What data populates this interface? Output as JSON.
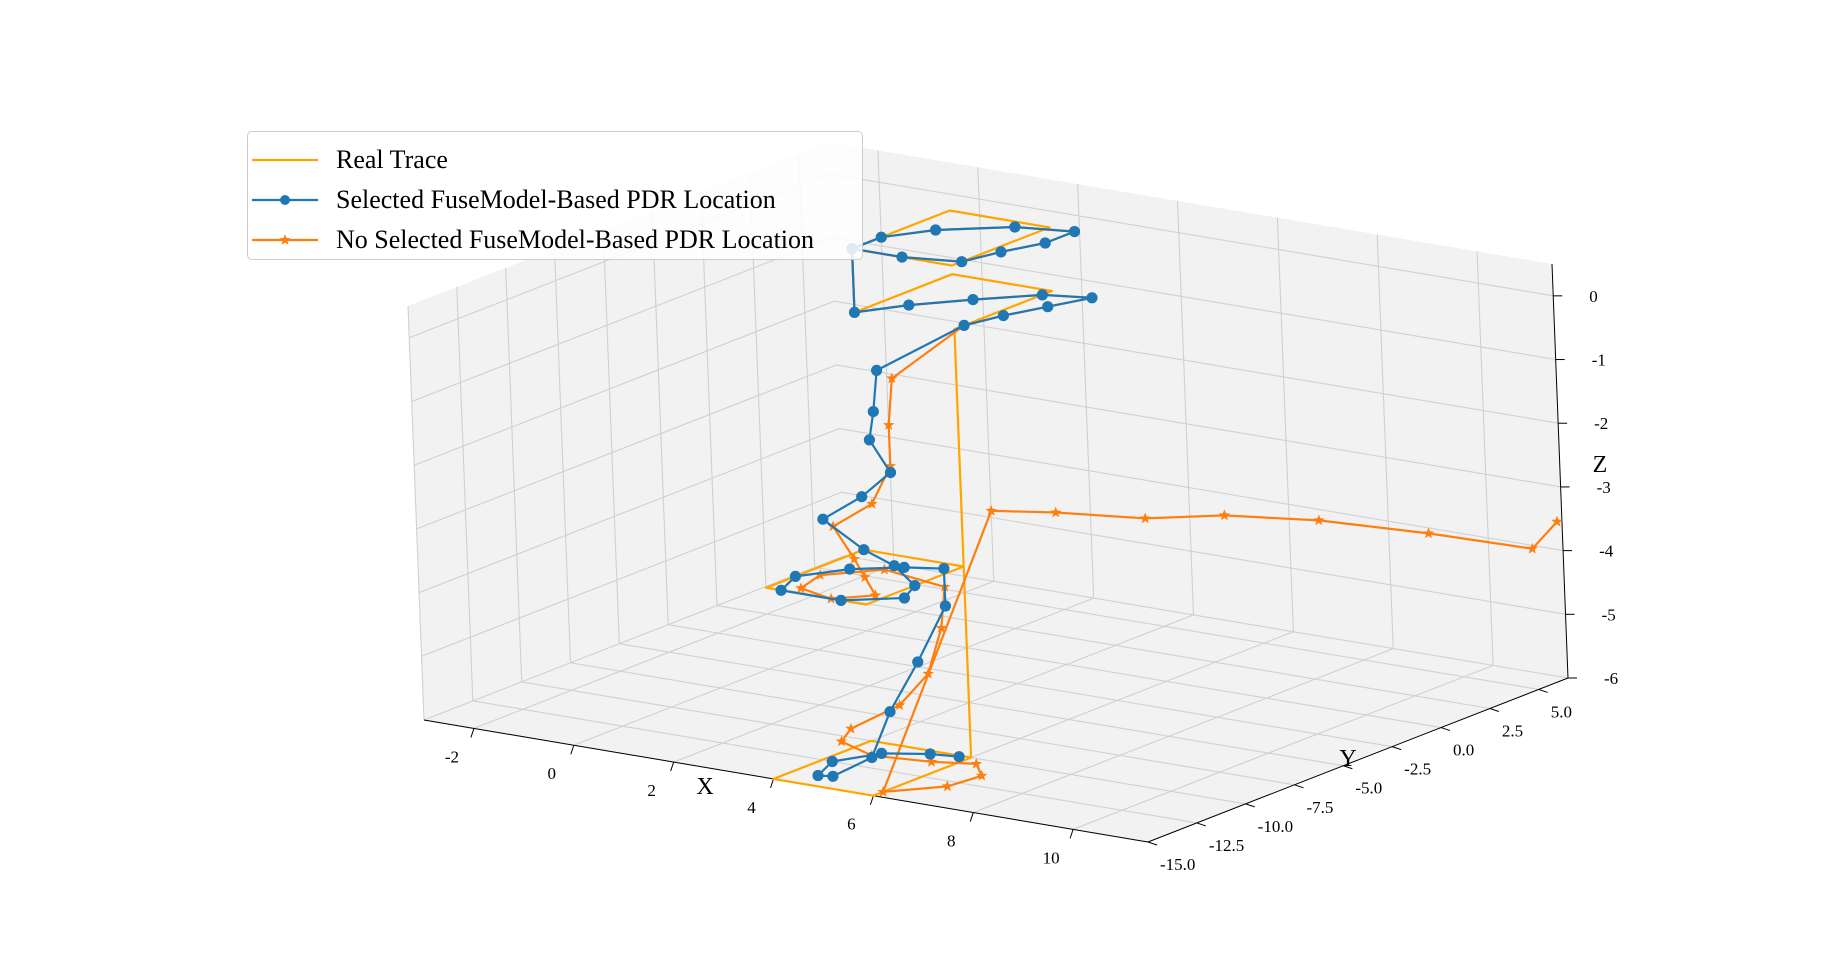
{
  "chart_data": {
    "type": "line3d",
    "title": "",
    "xlabel": "X",
    "ylabel": "Y",
    "zlabel": "Z",
    "xlim": [
      -3,
      11.5
    ],
    "ylim": [
      -15,
      6.5
    ],
    "zlim": [
      -6,
      0.5
    ],
    "xticks": [
      "-2",
      "0",
      "2",
      "4",
      "6",
      "8",
      "10"
    ],
    "yticks": [
      "-15.0",
      "-12.5",
      "-10.0",
      "-7.5",
      "-5.0",
      "-2.5",
      "0.0",
      "2.5",
      "5.0"
    ],
    "zticks": [
      "-6",
      "-5",
      "-4",
      "-3",
      "-2",
      "-1",
      "0"
    ],
    "grid": true,
    "legend_position": "upper-left",
    "colors": {
      "real": "#ffa500",
      "selected": "#1f77b4",
      "noselected": "#ff7f0e"
    },
    "series": [
      {
        "name": "Real Trace",
        "marker": "none",
        "points": [
          [
            0,
            0,
            0
          ],
          [
            0,
            5,
            0
          ],
          [
            2,
            5,
            0
          ],
          [
            2,
            0,
            0
          ],
          [
            0,
            0,
            0
          ],
          [
            0,
            0,
            -1
          ],
          [
            0,
            5,
            -1
          ],
          [
            2,
            5,
            -1
          ],
          [
            2,
            0,
            -1
          ],
          [
            6,
            -10,
            -3
          ],
          [
            6,
            -15,
            -3
          ],
          [
            4,
            -15,
            -3
          ],
          [
            4,
            -10,
            -3
          ],
          [
            6,
            -10,
            -3
          ],
          [
            6,
            -10,
            -6
          ],
          [
            6,
            -15,
            -6
          ],
          [
            4,
            -15,
            -6
          ],
          [
            4,
            -10,
            -6
          ],
          [
            6,
            -10,
            -6
          ]
        ]
      },
      {
        "name": "Selected FuseModel-Based PDR Location",
        "marker": "circle",
        "points": [
          [
            0,
            0,
            0
          ],
          [
            0,
            1.5,
            0
          ],
          [
            0.5,
            3,
            0
          ],
          [
            1.5,
            4.5,
            0
          ],
          [
            2.5,
            5,
            0
          ],
          [
            2.5,
            3.5,
            0
          ],
          [
            2.2,
            2,
            0
          ],
          [
            2,
            0.5,
            0
          ],
          [
            1,
            0,
            0
          ],
          [
            0,
            0,
            0
          ],
          [
            0,
            0,
            -1
          ],
          [
            0.5,
            1.5,
            -1
          ],
          [
            1.2,
            3,
            -1
          ],
          [
            2,
            4.5,
            -1
          ],
          [
            2.8,
            5,
            -1
          ],
          [
            2.5,
            3.5,
            -1
          ],
          [
            2.2,
            2,
            -1
          ],
          [
            2,
            0.5,
            -1
          ],
          [
            1,
            -1.5,
            -1.6
          ],
          [
            1.5,
            -3,
            -2
          ],
          [
            2,
            -4.5,
            -2.2
          ],
          [
            3,
            -6,
            -2.4
          ],
          [
            3,
            -7.5,
            -2.6
          ],
          [
            2.8,
            -9,
            -2.8
          ],
          [
            4,
            -10,
            -3
          ],
          [
            5,
            -11,
            -3
          ],
          [
            6,
            -12.5,
            -3
          ],
          [
            6.3,
            -13.8,
            -3
          ],
          [
            5.5,
            -15,
            -3
          ],
          [
            4.3,
            -15,
            -3
          ],
          [
            4,
            -13.5,
            -3
          ],
          [
            4.5,
            -12,
            -3
          ],
          [
            5.2,
            -11,
            -3
          ],
          [
            5.8,
            -10.5,
            -3
          ],
          [
            6,
            -11,
            -3.5
          ],
          [
            6,
            -12.5,
            -4.2
          ],
          [
            6,
            -14,
            -4.8
          ],
          [
            6,
            -15,
            -5.4
          ],
          [
            5.2,
            -15,
            -5.8
          ],
          [
            4.5,
            -14,
            -6
          ],
          [
            4.2,
            -12.5,
            -6
          ],
          [
            4.6,
            -11,
            -6
          ],
          [
            5.3,
            -10.3,
            -6
          ],
          [
            5.8,
            -10.1,
            -6
          ]
        ]
      },
      {
        "name": "No Selected FuseModel-Based PDR Location",
        "marker": "star",
        "points": [
          [
            0,
            0,
            0
          ],
          [
            0,
            1.5,
            0
          ],
          [
            0.5,
            3,
            0
          ],
          [
            1.5,
            4.5,
            0
          ],
          [
            2.5,
            5,
            0
          ],
          [
            2.5,
            3.5,
            0
          ],
          [
            2.2,
            2,
            0
          ],
          [
            2,
            0.5,
            0
          ],
          [
            1,
            0,
            0
          ],
          [
            0,
            0,
            0
          ],
          [
            0,
            0,
            -1
          ],
          [
            0.5,
            1.5,
            -1
          ],
          [
            1.2,
            3,
            -1
          ],
          [
            2,
            4.5,
            -1
          ],
          [
            2.8,
            5,
            -1
          ],
          [
            2.5,
            3.5,
            -1
          ],
          [
            2.2,
            2,
            -1
          ],
          [
            2,
            0.5,
            -1
          ],
          [
            1.5,
            -2,
            -1.6
          ],
          [
            2.2,
            -4,
            -2
          ],
          [
            3,
            -6,
            -2.3
          ],
          [
            3.4,
            -8,
            -2.6
          ],
          [
            3.2,
            -9.5,
            -2.8
          ],
          [
            4.2,
            -11,
            -3
          ],
          [
            5,
            -12.5,
            -3
          ],
          [
            5.8,
            -14,
            -3
          ],
          [
            5.3,
            -15,
            -3
          ],
          [
            4.5,
            -14.5,
            -3
          ],
          [
            4.3,
            -13,
            -3
          ],
          [
            5,
            -11.5,
            -3
          ],
          [
            6,
            -11,
            -3.2
          ],
          [
            6.5,
            -12.5,
            -3.6
          ],
          [
            6.8,
            -14,
            -4.1
          ],
          [
            6.6,
            -15,
            -4.5
          ],
          [
            5.6,
            -15,
            -5
          ],
          [
            5,
            -14,
            -5.4
          ],
          [
            5,
            -12.5,
            -5.8
          ],
          [
            5.6,
            -11,
            -6
          ],
          [
            6.3,
            -10.5,
            -6
          ],
          [
            6.8,
            -11.5,
            -6
          ],
          [
            6.7,
            -13,
            -6
          ],
          [
            6,
            -14.5,
            -6
          ],
          [
            3,
            -1,
            -3.6
          ],
          [
            3.5,
            1,
            -3.8
          ],
          [
            4.5,
            3,
            -4
          ],
          [
            5.5,
            4.5,
            -4
          ],
          [
            7,
            5.5,
            -4
          ],
          [
            9,
            6,
            -4
          ],
          [
            11,
            6.2,
            -4
          ],
          [
            12,
            5,
            -3.3
          ]
        ]
      }
    ]
  }
}
